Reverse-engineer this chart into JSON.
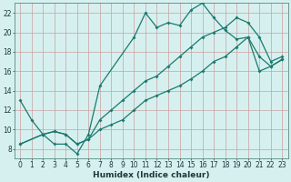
{
  "xlabel": "Humidex (Indice chaleur)",
  "xlim": [
    -0.5,
    23.5
  ],
  "ylim": [
    7,
    23
  ],
  "xticks": [
    0,
    1,
    2,
    3,
    4,
    5,
    6,
    7,
    8,
    9,
    10,
    11,
    12,
    13,
    14,
    15,
    16,
    17,
    18,
    19,
    20,
    21,
    22,
    23
  ],
  "yticks": [
    8,
    10,
    12,
    14,
    16,
    18,
    20,
    22
  ],
  "background_color": "#d6f0ef",
  "grid_color": "#c8a0a0",
  "line_color": "#1a7a6e",
  "line1_x": [
    0,
    1,
    2,
    3,
    4,
    5,
    6,
    7,
    10,
    11,
    12,
    13,
    14,
    15,
    16,
    17,
    18,
    19,
    20,
    21,
    22,
    23
  ],
  "line1_y": [
    13,
    11,
    9.5,
    8.5,
    8.5,
    7.5,
    9.5,
    14.5,
    19.5,
    22,
    20.5,
    21,
    20.7,
    22.3,
    23,
    21.5,
    20.2,
    19.3,
    19.5,
    17.5,
    16.5,
    17.2
  ],
  "line2_x": [
    0,
    2,
    3,
    4,
    5,
    6,
    7,
    8,
    9,
    10,
    11,
    12,
    13,
    14,
    15,
    16,
    17,
    18,
    19,
    20,
    21,
    22,
    23
  ],
  "line2_y": [
    8.5,
    9.5,
    9.8,
    9.5,
    8.5,
    9.0,
    10.0,
    10.5,
    11.0,
    12.0,
    13.0,
    13.5,
    14.0,
    14.5,
    15.2,
    16.0,
    17.0,
    17.5,
    18.5,
    19.5,
    16.0,
    16.5,
    17.2
  ],
  "line3_x": [
    0,
    2,
    3,
    4,
    5,
    6,
    7,
    8,
    9,
    10,
    11,
    12,
    13,
    14,
    15,
    16,
    17,
    18,
    19,
    20,
    21,
    22,
    23
  ],
  "line3_y": [
    8.5,
    9.5,
    9.8,
    9.5,
    8.5,
    9.0,
    11.0,
    12.0,
    13.0,
    14.0,
    15.0,
    15.5,
    16.5,
    17.5,
    18.5,
    19.5,
    20.0,
    20.5,
    21.5,
    21.0,
    19.5,
    17.0,
    17.5
  ]
}
